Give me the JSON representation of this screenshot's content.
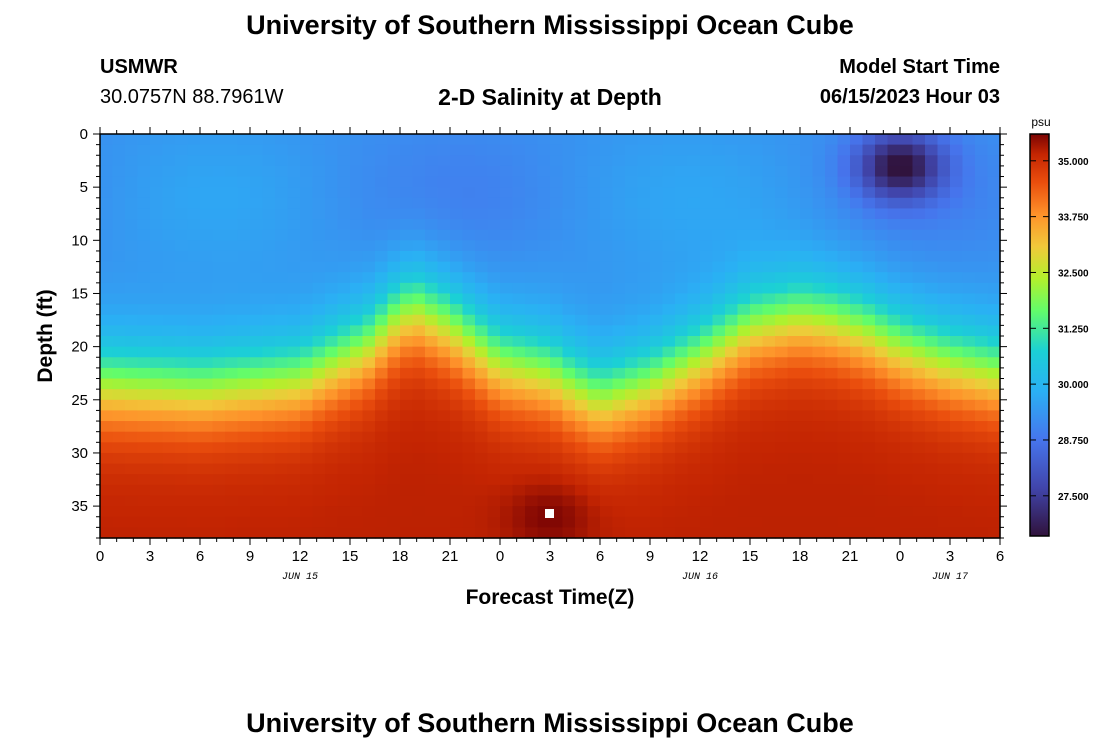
{
  "header": {
    "title": "University of Southern Mississippi Ocean Cube",
    "station": "USMWR",
    "coords": "30.0757N  88.7961W",
    "subtitle": "2-D Salinity at Depth",
    "model_start_label": "Model Start Time",
    "model_start_value": "06/15/2023 Hour 03"
  },
  "footer": {
    "title": "University of Southern Mississippi Ocean Cube"
  },
  "chart_data": {
    "type": "heatmap",
    "variable": "Salinity",
    "unit": "psu",
    "xlabel": "Forecast Time(Z)",
    "ylabel": "Depth (ft)",
    "x_range_hours": [
      0,
      54
    ],
    "x_ticks": [
      "0",
      "3",
      "6",
      "9",
      "12",
      "15",
      "18",
      "21",
      "0",
      "3",
      "6",
      "9",
      "12",
      "15",
      "18",
      "21",
      "0",
      "3",
      "6"
    ],
    "x_tick_hours": [
      0,
      3,
      6,
      9,
      12,
      15,
      18,
      21,
      24,
      27,
      30,
      33,
      36,
      39,
      42,
      45,
      48,
      51,
      54
    ],
    "date_labels": [
      {
        "label": "JUN 15",
        "hour": 12
      },
      {
        "label": "JUN 16",
        "hour": 36
      },
      {
        "label": "JUN 17",
        "hour": 51
      }
    ],
    "y_range": [
      0,
      38
    ],
    "y_ticks": [
      0,
      5,
      10,
      15,
      20,
      25,
      30,
      35
    ],
    "y_reversed": true,
    "colorbar": {
      "unit_label": "psu",
      "min": 26.6,
      "max": 35.6,
      "tick_values": [
        35.0,
        33.75,
        32.5,
        31.25,
        30.0,
        28.75,
        27.5
      ],
      "tick_labels": [
        "35.000",
        "33.750",
        "32.500",
        "31.250",
        "30.000",
        "28.750",
        "27.500"
      ]
    },
    "halocline_depth_ft": {
      "hours": [
        0,
        6,
        12,
        16,
        18,
        19,
        21,
        24,
        27,
        28,
        30,
        33,
        36,
        39,
        42,
        44,
        46,
        48,
        51,
        54
      ],
      "depths": [
        23.5,
        24,
        23,
        20,
        17,
        16.5,
        18,
        21.5,
        22.5,
        23.5,
        25,
        23.5,
        21,
        18,
        17,
        17.5,
        18.5,
        20,
        21.5,
        22.5
      ]
    },
    "surface_salinity_psu": 29.3,
    "deep_salinity_psu": 35.2,
    "annotations": [
      {
        "text": "low-salinity minimum near surface",
        "hour": 48,
        "depth_ft": 3,
        "salinity_psu": 26.8
      },
      {
        "text": "high-salinity maximum near bottom",
        "hour": 27,
        "depth_ft": 36,
        "salinity_psu": 35.6
      }
    ]
  }
}
